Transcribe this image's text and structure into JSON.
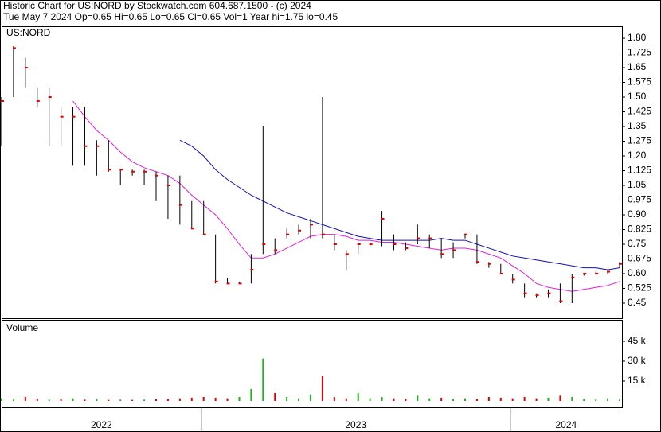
{
  "chart_data": {
    "type": "stock",
    "title": "Historic Chart for US:NORD by Stockwatch.com 604.687.1500 - (c) 2024",
    "subtitle": "Tue May  7 2024  Op=0.65  Hi=0.65  Lo=0.65  Cl=0.65  Vol=1  Year hi=1.75  lo=0.45",
    "symbol": "US:NORD",
    "bar_color": "#000000",
    "close_color": "#e00000",
    "x": [
      0,
      2,
      4,
      6,
      8,
      10,
      12,
      14,
      16,
      18,
      20,
      22,
      24,
      26,
      28,
      30,
      32,
      34,
      36,
      38,
      40,
      42,
      44,
      46,
      48,
      50,
      52,
      54,
      56,
      58,
      60,
      62,
      64,
      66,
      68,
      70,
      72,
      74,
      76,
      78,
      80,
      82,
      84,
      86,
      88,
      90,
      92,
      94,
      96,
      98,
      100,
      102,
      104
    ],
    "high": [
      1.5,
      1.76,
      1.7,
      1.55,
      1.55,
      1.45,
      1.45,
      1.45,
      1.28,
      1.28,
      1.13,
      1.13,
      1.13,
      1.12,
      1.1,
      1.1,
      0.97,
      0.97,
      0.8,
      0.58,
      0.56,
      0.7,
      1.35,
      0.78,
      0.83,
      0.85,
      0.88,
      1.5,
      0.8,
      0.72,
      0.76,
      0.76,
      0.92,
      0.8,
      0.76,
      0.85,
      0.8,
      0.78,
      0.76,
      0.8,
      0.8,
      0.66,
      0.65,
      0.6,
      0.55,
      0.5,
      0.52,
      0.55,
      0.6,
      0.6,
      0.61,
      0.62,
      0.66
    ],
    "low": [
      1.25,
      1.5,
      1.55,
      1.45,
      1.25,
      1.25,
      1.15,
      1.15,
      1.1,
      1.12,
      1.05,
      1.1,
      1.05,
      0.97,
      0.88,
      0.85,
      0.83,
      0.8,
      0.55,
      0.55,
      0.55,
      0.55,
      0.7,
      0.7,
      0.78,
      0.8,
      0.78,
      0.78,
      0.72,
      0.62,
      0.7,
      0.74,
      0.74,
      0.72,
      0.72,
      0.75,
      0.73,
      0.68,
      0.68,
      0.78,
      0.65,
      0.63,
      0.6,
      0.55,
      0.48,
      0.48,
      0.48,
      0.45,
      0.45,
      0.59,
      0.6,
      0.6,
      0.63
    ],
    "close": [
      1.48,
      1.75,
      1.65,
      1.48,
      1.5,
      1.4,
      1.4,
      1.25,
      1.25,
      1.13,
      1.13,
      1.12,
      1.12,
      1.1,
      1.05,
      0.95,
      0.83,
      0.8,
      0.56,
      0.55,
      0.55,
      0.62,
      0.75,
      0.72,
      0.8,
      0.82,
      0.85,
      0.8,
      0.75,
      0.7,
      0.75,
      0.75,
      0.88,
      0.75,
      0.73,
      0.78,
      0.78,
      0.7,
      0.72,
      0.8,
      0.66,
      0.65,
      0.6,
      0.57,
      0.5,
      0.49,
      0.5,
      0.46,
      0.58,
      0.6,
      0.6,
      0.61,
      0.65
    ],
    "moving_averages": [
      {
        "color": "#e020e0",
        "values": [
          null,
          null,
          null,
          null,
          null,
          null,
          1.48,
          1.4,
          1.33,
          1.28,
          1.22,
          1.17,
          1.14,
          1.12,
          1.1,
          1.06,
          1.0,
          0.95,
          0.9,
          0.83,
          0.75,
          0.68,
          0.68,
          0.7,
          0.73,
          0.76,
          0.79,
          0.8,
          0.8,
          0.79,
          0.77,
          0.77,
          0.76,
          0.76,
          0.75,
          0.74,
          0.73,
          0.72,
          0.73,
          0.73,
          0.72,
          0.7,
          0.68,
          0.64,
          0.6,
          0.55,
          0.53,
          0.52,
          0.51,
          0.52,
          0.53,
          0.54,
          0.56
        ]
      },
      {
        "color": "#1010c0",
        "values": [
          null,
          null,
          null,
          null,
          null,
          null,
          null,
          null,
          null,
          null,
          null,
          null,
          null,
          null,
          null,
          1.28,
          1.25,
          1.2,
          1.13,
          1.08,
          1.04,
          1.0,
          0.97,
          0.94,
          0.91,
          0.89,
          0.87,
          0.85,
          0.83,
          0.81,
          0.79,
          0.78,
          0.77,
          0.77,
          0.77,
          0.77,
          0.77,
          0.78,
          0.77,
          0.77,
          0.75,
          0.73,
          0.71,
          0.69,
          0.68,
          0.67,
          0.66,
          0.65,
          0.64,
          0.63,
          0.63,
          0.62,
          0.63
        ]
      }
    ],
    "xlim": [
      0,
      104.4
    ],
    "ylim": [
      0.373,
      1.861
    ],
    "yticks": [
      {
        "value": 1.8,
        "label": "1.80"
      },
      1.725,
      1.65,
      1.575,
      {
        "value": 1.5,
        "label": "1.50"
      },
      1.425,
      1.35,
      1.275,
      {
        "value": 1.2,
        "label": "1.20"
      },
      1.125,
      1.05,
      0.975,
      {
        "value": 0.9,
        "label": "0.90"
      },
      0.825,
      0.75,
      0.675,
      {
        "value": 0.6,
        "label": "0.60"
      },
      0.525,
      0.45
    ],
    "volume": {
      "title": "Volume",
      "up_color": "#20b020",
      "down_color": "#e00000",
      "values": [
        2000,
        1000,
        3000,
        1500,
        1000,
        1500,
        2000,
        1000,
        1500,
        800,
        1000,
        800,
        1000,
        1500,
        1500,
        2000,
        2500,
        3000,
        2500,
        2000,
        3000,
        9000,
        32000,
        6000,
        3000,
        2000,
        5000,
        19000,
        3000,
        2000,
        6000,
        2000,
        3000,
        2000,
        1500,
        4000,
        2000,
        2500,
        1500,
        2000,
        1500,
        3000,
        2500,
        2000,
        3000,
        2000,
        2500,
        4000,
        3000,
        1500,
        1000,
        2000,
        1000
      ],
      "ylim": [
        -4800,
        61200
      ],
      "yticks": [
        {
          "value": 45000,
          "label": "45 k"
        },
        {
          "value": 30000,
          "label": "30 k"
        },
        {
          "value": 15000,
          "label": "15 k"
        }
      ]
    },
    "year_bands": [
      {
        "label": "2022",
        "from": 0,
        "to": 33.6
      },
      {
        "label": "2023",
        "from": 33.6,
        "to": 85.6
      },
      {
        "label": "2024",
        "from": 85.6,
        "to": 104.4
      }
    ]
  }
}
